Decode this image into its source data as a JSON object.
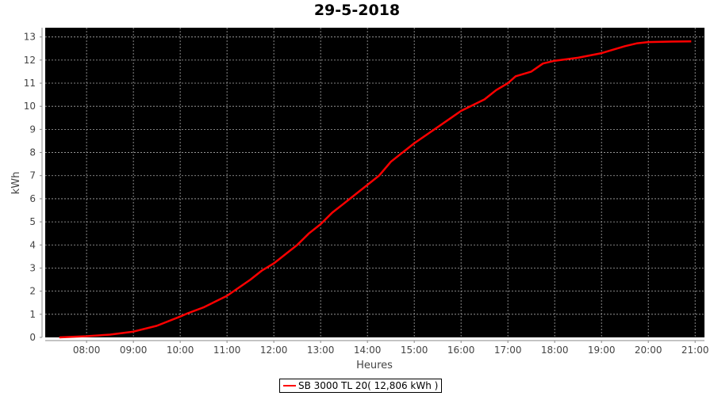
{
  "chart_data": {
    "type": "line",
    "title": "29-5-2018",
    "xlabel": "Heures",
    "ylabel": "kWh",
    "xlim": [
      "07:07",
      "21:12"
    ],
    "ylim": [
      0,
      13.4
    ],
    "x_ticks": [
      "08:00",
      "09:00",
      "10:00",
      "11:00",
      "12:00",
      "13:00",
      "14:00",
      "15:00",
      "16:00",
      "17:00",
      "18:00",
      "19:00",
      "20:00",
      "21:00"
    ],
    "y_ticks": [
      0,
      1,
      2,
      3,
      4,
      5,
      6,
      7,
      8,
      9,
      10,
      11,
      12,
      13
    ],
    "grid": true,
    "background": "#000000",
    "legend_position": "bottom",
    "series": [
      {
        "name": "SB 3000 TL 20( 12,806 kWh )",
        "color": "#ff0000",
        "x": [
          "07:25",
          "08:00",
          "08:30",
          "09:00",
          "09:30",
          "10:00",
          "10:10",
          "10:30",
          "10:45",
          "11:00",
          "11:30",
          "11:45",
          "12:00",
          "12:30",
          "12:45",
          "13:00",
          "13:15",
          "13:30",
          "14:00",
          "14:15",
          "14:30",
          "15:00",
          "15:30",
          "15:45",
          "16:00",
          "16:30",
          "16:45",
          "17:00",
          "17:10",
          "17:30",
          "17:45",
          "18:00",
          "18:30",
          "19:00",
          "19:30",
          "19:45",
          "20:00",
          "20:30",
          "20:55"
        ],
        "y": [
          0,
          0.05,
          0.12,
          0.25,
          0.5,
          0.9,
          1.05,
          1.3,
          1.55,
          1.8,
          2.5,
          2.9,
          3.2,
          4.0,
          4.5,
          4.9,
          5.4,
          5.8,
          6.6,
          7.0,
          7.6,
          8.4,
          9.1,
          9.45,
          9.8,
          10.3,
          10.7,
          11.0,
          11.3,
          11.5,
          11.85,
          11.97,
          12.1,
          12.3,
          12.6,
          12.72,
          12.78,
          12.8,
          12.806
        ]
      }
    ]
  }
}
